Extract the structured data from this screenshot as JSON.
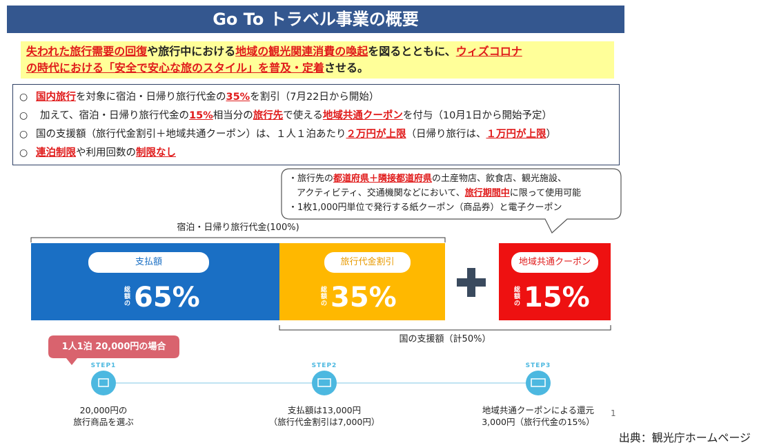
{
  "title": "Go To トラベル事業の概要",
  "headline": [
    [
      "失われた旅行需要の回復",
      "や旅行中における",
      "地域の観光関連消費の喚起",
      "を図るとともに、",
      "ウィズコロナ"
    ],
    [
      "の時代における「安全で安心な旅のスタイル」を普及・定着",
      "させる。"
    ]
  ],
  "bullet": "○",
  "points": [
    [
      "国内旅行",
      "を対象に宿泊・日帰り旅行代金の",
      "35%",
      "を割引（7月22日から開始）"
    ],
    [
      "加えて、宿泊・日帰り旅行代金の",
      "15%",
      "相当分の",
      "旅行先",
      "で使える",
      "地域共通クーポン",
      "を付与（10月1日から開始予定）"
    ],
    [
      "国の支援額（旅行代金割引＋地域共通クーポン）は、１人１泊あたり",
      "２万円が上限",
      "（日帰り旅行は、",
      "１万円が上限",
      "）"
    ],
    [
      "連泊制限",
      "や利用回数の",
      "制限なし"
    ]
  ],
  "callout": [
    [
      "・旅行先の",
      "都道府県＋隣接都道府県",
      "の土産物店、飲食店、観光施設、"
    ],
    [
      "アクティビティ、交通機関などにおいて、",
      "旅行期間中",
      "に限って使用可能"
    ],
    [
      "・1枚1,000円単位で発行する紙クーポン（商品券）と電子クーポン"
    ]
  ],
  "total_label": "宿泊・日帰り旅行代金(100%)",
  "blocks": [
    {
      "label": "支払額",
      "prefix": "総額の",
      "share": "65%"
    },
    {
      "label": "旅行代金割引",
      "prefix": "総額の",
      "share": "35%"
    },
    {
      "label": "地域共通クーポン",
      "prefix": "総額の",
      "share": "15%"
    }
  ],
  "support_label": "国の支援額（計50%）",
  "example": "1人1泊 20,000円の場合",
  "steps": [
    {
      "badge": "STEP1",
      "lines": [
        "20,000円の",
        "旅行商品を選ぶ"
      ]
    },
    {
      "badge": "STEP2",
      "lines": [
        "支払額は13,000円",
        "（旅行代金割引は7,000円）"
      ]
    },
    {
      "badge": "STEP3",
      "lines": [
        "地域共通クーポンによる還元",
        "3,000円（旅行代金の15%）"
      ]
    }
  ],
  "page_number": "1",
  "source": "出典：観光庁ホームページ"
}
